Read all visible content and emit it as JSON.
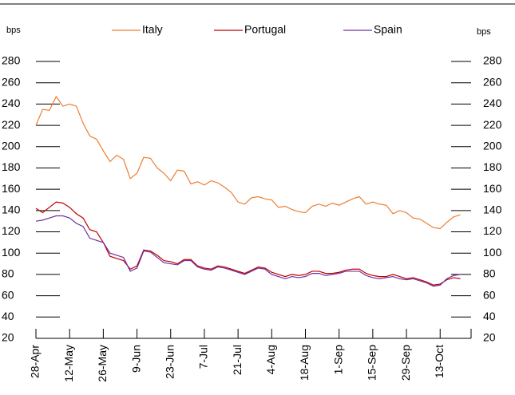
{
  "chart_data": {
    "type": "line",
    "y_label": "bps",
    "y2_label": "bps",
    "categories": [
      "28-Apr",
      null,
      null,
      null,
      null,
      "12-May",
      null,
      null,
      null,
      null,
      "26-May",
      null,
      null,
      null,
      null,
      "9-Jun",
      null,
      null,
      null,
      null,
      "23-Jun",
      null,
      null,
      null,
      null,
      "7-Jul",
      null,
      null,
      null,
      null,
      "21-Jul",
      null,
      null,
      null,
      null,
      "4-Aug",
      null,
      null,
      null,
      null,
      "18-Aug",
      null,
      null,
      null,
      null,
      "1-Sep",
      null,
      null,
      null,
      null,
      "15-Sep",
      null,
      null,
      null,
      null,
      "29-Sep",
      null,
      null,
      null,
      null,
      "13-Oct",
      null,
      null,
      null
    ],
    "series": [
      {
        "name": "Italy",
        "color": "#ed7d31",
        "values": [
          220,
          235,
          234,
          247,
          238,
          240,
          238,
          222,
          210,
          207,
          196,
          186,
          192,
          188,
          170,
          175,
          190,
          189,
          180,
          175,
          168,
          178,
          177,
          165,
          167,
          164,
          168,
          166,
          162,
          157,
          148,
          146,
          152,
          153,
          151,
          150,
          143,
          144,
          141,
          139,
          138,
          144,
          146,
          144,
          147,
          145,
          148,
          151,
          153,
          146,
          148,
          146,
          145,
          137,
          140,
          138,
          133,
          132,
          128,
          124,
          123,
          129,
          134,
          136
        ]
      },
      {
        "name": "Portugal",
        "color": "#c00000",
        "values": [
          142,
          138,
          143,
          148,
          147,
          143,
          137,
          133,
          122,
          120,
          110,
          97,
          95,
          93,
          85,
          88,
          103,
          102,
          98,
          93,
          92,
          90,
          94,
          94,
          88,
          86,
          85,
          88,
          87,
          85,
          83,
          81,
          84,
          87,
          86,
          82,
          80,
          78,
          80,
          79,
          80,
          83,
          83,
          81,
          81,
          82,
          84,
          85,
          85,
          81,
          79,
          78,
          78,
          80,
          78,
          76,
          77,
          75,
          73,
          70,
          71,
          75,
          77,
          76
        ]
      },
      {
        "name": "Spain",
        "color": "#7030a0",
        "values": [
          130,
          131,
          133,
          135,
          135,
          133,
          128,
          125,
          114,
          112,
          110,
          100,
          98,
          96,
          83,
          86,
          102,
          101,
          96,
          91,
          90,
          89,
          93,
          93,
          87,
          85,
          84,
          87,
          86,
          84,
          82,
          80,
          83,
          86,
          85,
          80,
          78,
          76,
          78,
          77,
          78,
          81,
          81,
          79,
          80,
          81,
          83,
          83,
          83,
          79,
          77,
          76,
          77,
          78,
          76,
          75,
          76,
          74,
          72,
          69,
          70,
          76,
          79,
          80
        ]
      }
    ],
    "ylim": [
      20,
      280
    ],
    "yticks": [
      20,
      40,
      60,
      80,
      100,
      120,
      140,
      160,
      180,
      200,
      220,
      240,
      260,
      280
    ],
    "y2lim": [
      20,
      280
    ],
    "y2ticks": [
      20,
      40,
      60,
      80,
      100,
      120,
      140,
      160,
      180,
      200,
      220,
      240,
      260,
      280
    ],
    "legend": "top"
  }
}
